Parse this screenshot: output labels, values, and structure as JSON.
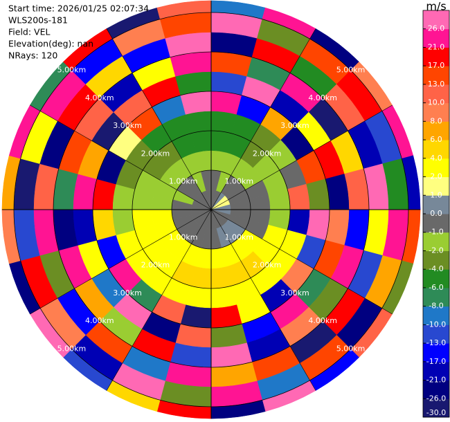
{
  "chart_data": {
    "type": "ppi",
    "info": [
      "Start time: 2026/01/25 02:07:34",
      "WLS200s-181",
      "Field: VEL",
      "Elevation(deg): nan",
      "NRays: 120"
    ],
    "range_edges_km": [
      0,
      0.5,
      1,
      1.5,
      2,
      2.5,
      3,
      3.5,
      4,
      4.5,
      5,
      5.3
    ],
    "values": [
      [
        -0.5,
        -0.5,
        0.5,
        1.5,
        1.5,
        0.5,
        0.5,
        -0.5,
        -0.5,
        -0.5,
        -0.5,
        -0.5,
        -0.5,
        -0.5,
        -0.5,
        -0.5,
        -0.5,
        -0.5,
        -0.5,
        -0.5,
        -0.5,
        -0.5,
        -0.5,
        -0.5
      ],
      [
        -0.5,
        -1.5,
        -0.5,
        -0.5,
        -0.5,
        -0.5,
        -0.5,
        -0.5,
        0.5,
        0.5,
        0.5,
        -0.5,
        -0.5,
        -0.5,
        -0.5,
        -0.5,
        -0.5,
        -0.5,
        -0.5,
        -1.5,
        -0.5,
        -0.5,
        -1.5,
        -0.5
      ],
      [
        -1.5,
        -1.5,
        -1.5,
        -1.5,
        -0.5,
        -0.5,
        -0.5,
        -0.5,
        3,
        3,
        3,
        3,
        3,
        3,
        3,
        3,
        3,
        3,
        -1.5,
        -1.5,
        -1.5,
        -1.5,
        -1.5,
        -1.5
      ],
      [
        -5,
        -5,
        -3,
        -1.5,
        -1.5,
        -1.5,
        -1.5,
        3,
        3,
        5,
        5,
        5,
        5,
        5,
        3,
        3,
        3,
        3,
        -1.5,
        -1.5,
        -3,
        -3,
        -5,
        -5
      ],
      [
        -5,
        -5,
        -3,
        -1.5,
        -0.5,
        12,
        -20,
        3,
        3,
        3,
        3,
        3,
        3,
        3,
        3,
        3,
        3,
        -1.5,
        -1.5,
        -3,
        -3,
        -5,
        -5,
        -5
      ],
      [
        22,
        -15,
        7,
        -24,
        15,
        -3,
        28,
        -11,
        9,
        -19,
        2.5,
        18,
        -28,
        11,
        -7,
        24,
        -14,
        5,
        19,
        -22,
        1.5,
        14,
        -9,
        27
      ],
      [
        -11,
        26,
        -19,
        3,
        19,
        -26,
        9,
        15,
        -7,
        23,
        -15,
        -2.5,
        11,
        -23,
        27,
        -9,
        3,
        -18,
        23,
        7,
        -27,
        12,
        19,
        -5
      ],
      [
        15,
        -8,
        21,
        -27,
        5,
        12,
        -17,
        24,
        -3,
        9,
        -21,
        28,
        -12,
        18,
        -1.5,
        7,
        25,
        -25,
        -7,
        16,
        10,
        -19,
        3,
        24
      ],
      [
        -24,
        18,
        -5,
        11,
        -21,
        27,
        2.5,
        -13,
        20,
        -28,
        14,
        6,
        24,
        -9,
        15,
        -16,
        -3,
        22,
        12,
        -26,
        19,
        5,
        -14,
        28
      ],
      [
        27,
        -2.5,
        14,
        19,
        -12,
        -6,
        23,
        7,
        -25,
        16,
        -10,
        21,
        -4,
        26,
        -20,
        9,
        17,
        -11,
        -28,
        3,
        24,
        -16,
        8,
        15
      ],
      [
        -9,
        22,
        -26,
        8,
        25,
        -18,
        13,
        -3,
        11,
        -15,
        27,
        -22,
        19,
        4,
        -13,
        28,
        -24,
        9,
        6,
        21,
        -8,
        17,
        -27,
        12
      ]
    ],
    "range_rings": [
      {
        "value": 1,
        "label": "1.00km"
      },
      {
        "value": 2,
        "label": "2.00km"
      },
      {
        "value": 3,
        "label": "3.00km"
      },
      {
        "value": 4,
        "label": "4.00km"
      },
      {
        "value": 5,
        "label": "5.00km"
      }
    ],
    "colorbar": {
      "label": "m/s",
      "ylim": [
        -30,
        30
      ],
      "yticks": [
        {
          "value": -30,
          "label": "-30.0"
        },
        {
          "value": -26,
          "label": "-26.0"
        },
        {
          "value": -21,
          "label": "-21.0"
        },
        {
          "value": -17,
          "label": "-17.0"
        },
        {
          "value": -13,
          "label": "-13.0"
        },
        {
          "value": -10,
          "label": "-10.0"
        },
        {
          "value": -8,
          "label": "-8.0"
        },
        {
          "value": -6,
          "label": "-6.0"
        },
        {
          "value": -4,
          "label": "-4.0"
        },
        {
          "value": -2,
          "label": "-2.0"
        },
        {
          "value": -1,
          "label": "-1.0"
        },
        {
          "value": 0,
          "label": "0.0"
        },
        {
          "value": 1,
          "label": "1.0"
        },
        {
          "value": 2,
          "label": "2.0"
        },
        {
          "value": 4,
          "label": "4.0"
        },
        {
          "value": 6,
          "label": "6.0"
        },
        {
          "value": 8,
          "label": "8.0"
        },
        {
          "value": 10,
          "label": "10.0"
        },
        {
          "value": 13,
          "label": "13.0"
        },
        {
          "value": 17,
          "label": "17.0"
        },
        {
          "value": 21,
          "label": "21.0"
        },
        {
          "value": 26,
          "label": "26.0"
        }
      ],
      "colors": [
        "#191970",
        "#000080",
        "#0000b4",
        "#0000ff",
        "#2848d0",
        "#1f78c8",
        "#2e8b57",
        "#228b22",
        "#6b8e23",
        "#9acd32",
        "#696969",
        "#778899",
        "#ffff80",
        "#ffff00",
        "#ffd700",
        "#ffa500",
        "#ff7f50",
        "#ff6347",
        "#ff4500",
        "#ff0000",
        "#ff1493",
        "#ff69b4"
      ]
    }
  }
}
